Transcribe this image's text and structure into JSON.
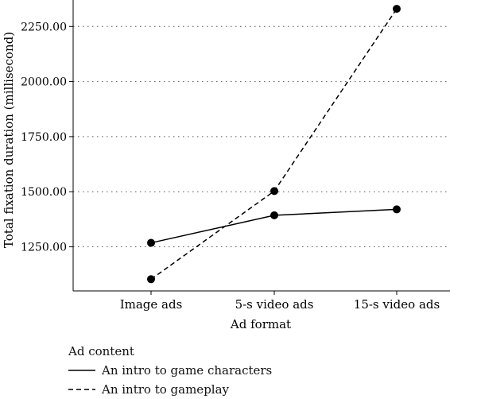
{
  "chart_data": {
    "type": "line",
    "categories": [
      "Image ads",
      "5-s video ads",
      "15-s video ads"
    ],
    "series": [
      {
        "name": "An intro to game characters",
        "values": [
          1268,
          1393,
          1420
        ],
        "line_style": "solid"
      },
      {
        "name": "An intro to gameplay",
        "values": [
          1103,
          1503,
          2330
        ],
        "line_style": "dashed"
      }
    ],
    "title": "",
    "xlabel": "Ad format",
    "ylabel": "Total fixation duration (millisecond)",
    "yticks": [
      1250,
      1500,
      1750,
      2000,
      2250
    ],
    "ytick_labels": [
      "1250.00",
      "1500.00",
      "1750.00",
      "2000.00",
      "2250.00"
    ],
    "ylim": [
      1050,
      2370
    ],
    "grid": "horizontal-dotted",
    "legend": {
      "title": "Ad content",
      "placement": "bottom-left"
    },
    "colors": {
      "line": "#000000",
      "grid": "#555555"
    }
  }
}
